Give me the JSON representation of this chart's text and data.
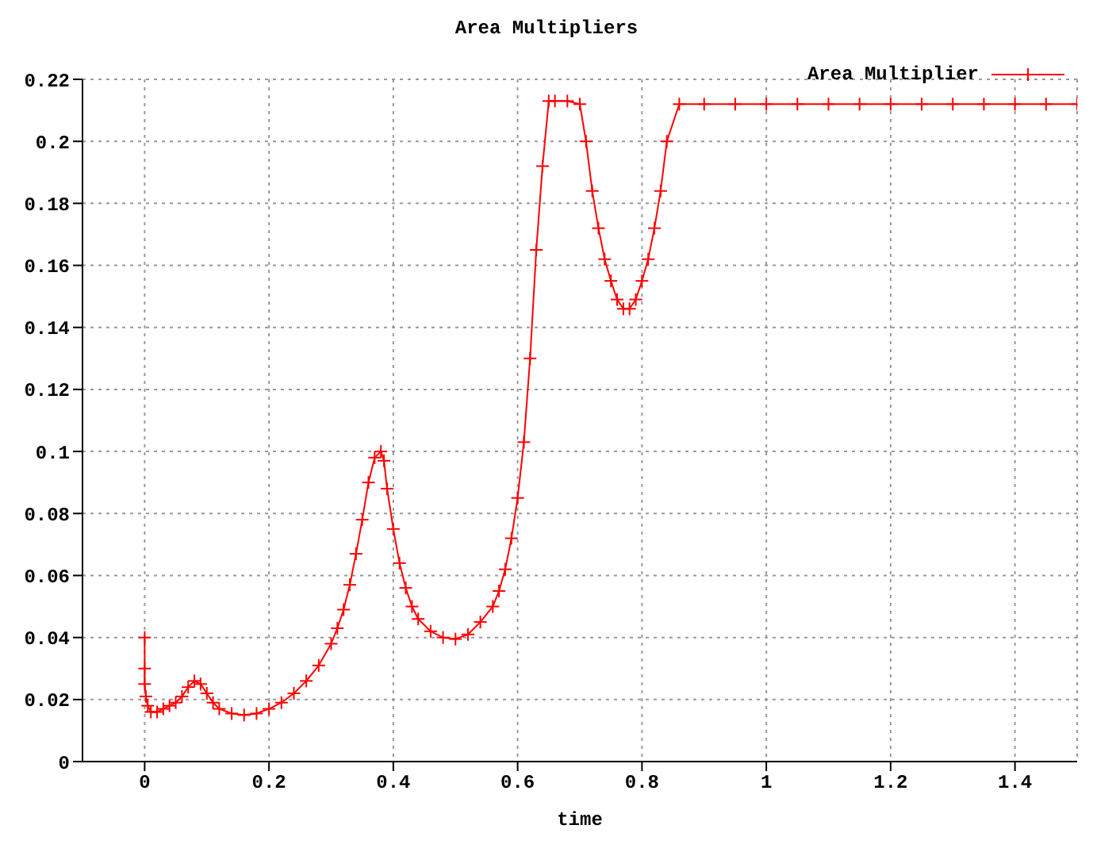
{
  "chart_data": {
    "type": "line",
    "title": "Area Multipliers",
    "xlabel": "time",
    "xlim": [
      -0.1,
      1.5
    ],
    "xticks": [
      0,
      0.2,
      0.4,
      0.6,
      0.8,
      1,
      1.2,
      1.4
    ],
    "ylim": [
      0,
      0.22
    ],
    "yticks": [
      0,
      0.02,
      0.04,
      0.06,
      0.08,
      0.1,
      0.12,
      0.14,
      0.16,
      0.18,
      0.2,
      0.22
    ],
    "grid": true,
    "legend": "top right",
    "marker": "cross",
    "line_style": "solid",
    "series": [
      {
        "name": "Area Multiplier",
        "color": "#ff0000",
        "x": [
          0,
          0,
          0,
          0.002,
          0.005,
          0.01,
          0.02,
          0.03,
          0.04,
          0.05,
          0.06,
          0.07,
          0.08,
          0.09,
          0.1,
          0.11,
          0.12,
          0.14,
          0.16,
          0.18,
          0.2,
          0.22,
          0.24,
          0.26,
          0.28,
          0.3,
          0.31,
          0.32,
          0.33,
          0.34,
          0.35,
          0.36,
          0.37,
          0.38,
          0.385,
          0.39,
          0.4,
          0.41,
          0.42,
          0.43,
          0.44,
          0.46,
          0.48,
          0.5,
          0.52,
          0.54,
          0.56,
          0.57,
          0.58,
          0.59,
          0.6,
          0.61,
          0.62,
          0.63,
          0.64,
          0.65,
          0.66,
          0.68,
          0.7,
          0.71,
          0.72,
          0.73,
          0.74,
          0.75,
          0.76,
          0.77,
          0.78,
          0.79,
          0.8,
          0.81,
          0.82,
          0.83,
          0.84,
          0.86,
          0.9,
          0.95,
          1,
          1.05,
          1.1,
          1.15,
          1.2,
          1.25,
          1.3,
          1.35,
          1.4,
          1.45,
          1.5
        ],
        "values": [
          0.04,
          0.03,
          0.025,
          0.021,
          0.018,
          0.016,
          0.016,
          0.017,
          0.018,
          0.019,
          0.021,
          0.024,
          0.026,
          0.025,
          0.022,
          0.019,
          0.017,
          0.0155,
          0.015,
          0.0155,
          0.017,
          0.019,
          0.022,
          0.026,
          0.031,
          0.038,
          0.043,
          0.049,
          0.057,
          0.067,
          0.078,
          0.09,
          0.098,
          0.1,
          0.097,
          0.088,
          0.075,
          0.064,
          0.056,
          0.05,
          0.046,
          0.042,
          0.04,
          0.0395,
          0.041,
          0.045,
          0.05,
          0.055,
          0.062,
          0.072,
          0.085,
          0.103,
          0.13,
          0.165,
          0.192,
          0.213,
          0.213,
          0.213,
          0.212,
          0.2,
          0.184,
          0.172,
          0.162,
          0.155,
          0.149,
          0.146,
          0.146,
          0.149,
          0.155,
          0.162,
          0.172,
          0.184,
          0.2,
          0.212,
          0.212,
          0.212,
          0.212,
          0.212,
          0.212,
          0.212,
          0.212,
          0.212,
          0.212,
          0.212,
          0.212,
          0.212,
          0.212
        ]
      }
    ]
  }
}
